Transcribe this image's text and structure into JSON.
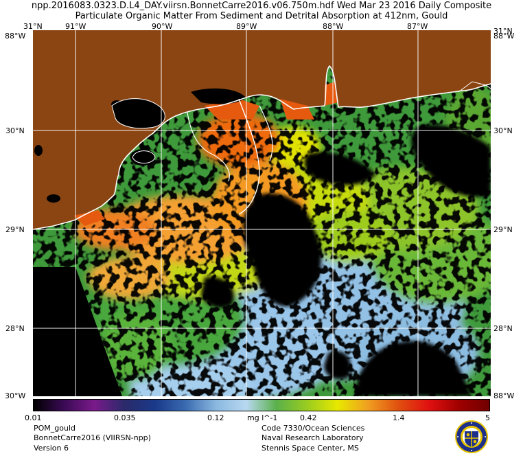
{
  "header": {
    "line1": "npp.2016083.0323.D.L4_DAY.viirsn.BonnetCarre2016.v06.750m.hdf   Wed Mar 23 2016 Daily Composite",
    "line2": "Particulate Organic Matter From Sediment and Detrital Absorption at 412nm, Gould"
  },
  "axes": {
    "top_lon": [
      "31°N",
      "91°W",
      "90°W",
      "89°W",
      "88°W",
      "87°W",
      "31°N"
    ],
    "left_lat": [
      "88°W",
      "30°N",
      "29°N",
      "28°N",
      "88°W"
    ],
    "right_lat": [
      "88°W",
      "30°N",
      "29°N",
      "28°N",
      "88°W"
    ],
    "corner_bottom_left": "30°W",
    "corner_bottom_right": "88°W"
  },
  "colorbar": {
    "ticks": [
      "0.01",
      "0.035",
      "0.12",
      "mg l^-1",
      "0.42",
      "1.4",
      "5"
    ],
    "stops": [
      "#000000",
      "#3a0a55",
      "#7a1a8a",
      "#2a2a6a",
      "#1a3a8a",
      "#3a6ab0",
      "#8ab8e0",
      "#b8d8f0",
      "#5ab04a",
      "#9acc20",
      "#e8e800",
      "#f0a020",
      "#e05010",
      "#e01010",
      "#a00000",
      "#700000"
    ]
  },
  "footer_left": {
    "line1": "POM_gould",
    "line2": "BonnetCarre2016 (VIIRSN-npp)",
    "line3": "Version 6"
  },
  "footer_right": {
    "line1": "Code 7330/Ocean Sciences",
    "line2": "Naval Research Laboratory",
    "line3": "Stennis Space Center, MS"
  },
  "colors": {
    "land": "#8b4513",
    "ocean_nodata": "#000000",
    "grid": "#ffffff",
    "coast": "#ffffff"
  },
  "icons": {
    "seal": "nrl-seal-icon"
  }
}
